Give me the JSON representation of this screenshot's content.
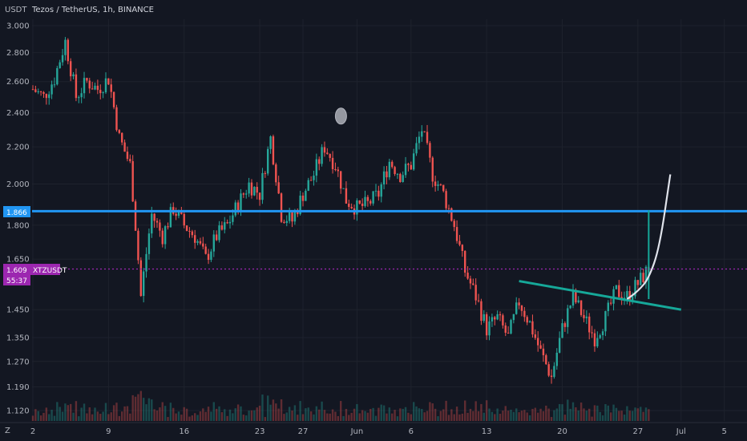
{
  "header": {
    "currency": "USDT",
    "title": "Tezos / TetherUS, 1h, BINANCE"
  },
  "price_tags": {
    "level": "1.866",
    "current_price": "1.609",
    "symbol": "XTZUSDT",
    "countdown": "55:37"
  },
  "footer": {
    "tz_label": "Z"
  },
  "colors": {
    "background": "#131722",
    "up_candle": "#26a69a",
    "down_candle": "#ef5350",
    "level_line": "#2196f3",
    "price_line": "#9c27b0",
    "trend_line": "#16a899",
    "projection": "#e0e3eb"
  },
  "chart_data": {
    "type": "candlestick",
    "title": "Tezos / TetherUS, 1h, BINANCE",
    "y_unit": "USDT",
    "y_scale": "log",
    "ylim": [
      1.1,
      3.0
    ],
    "y_ticks": [
      "3.000",
      "2.800",
      "2.600",
      "2.400",
      "2.200",
      "2.000",
      "1.800",
      "1.650",
      "1.450",
      "1.350",
      "1.270",
      "1.190",
      "1.120"
    ],
    "x_ticks": [
      "2",
      "9",
      "16",
      "23",
      "27",
      "Jun",
      "6",
      "13",
      "20",
      "27",
      "Jul",
      "5"
    ],
    "price_path": [
      {
        "x": "May 2",
        "y": 2.55
      },
      {
        "x": "May 3",
        "y": 2.5
      },
      {
        "x": "May 4",
        "y": 2.62
      },
      {
        "x": "May 5",
        "y": 2.88
      },
      {
        "x": "May 6",
        "y": 2.5
      },
      {
        "x": "May 7",
        "y": 2.6
      },
      {
        "x": "May 8",
        "y": 2.55
      },
      {
        "x": "May 9",
        "y": 2.62
      },
      {
        "x": "May 10",
        "y": 2.25
      },
      {
        "x": "May 11",
        "y": 2.1
      },
      {
        "x": "May 12",
        "y": 1.5
      },
      {
        "x": "May 13",
        "y": 1.85
      },
      {
        "x": "May 14",
        "y": 1.75
      },
      {
        "x": "May 15",
        "y": 1.88
      },
      {
        "x": "May 16",
        "y": 1.8
      },
      {
        "x": "May 17",
        "y": 1.75
      },
      {
        "x": "May 18",
        "y": 1.65
      },
      {
        "x": "May 19",
        "y": 1.75
      },
      {
        "x": "May 20",
        "y": 1.8
      },
      {
        "x": "May 21",
        "y": 1.9
      },
      {
        "x": "May 22",
        "y": 2.0
      },
      {
        "x": "May 23",
        "y": 1.95
      },
      {
        "x": "May 24",
        "y": 2.25
      },
      {
        "x": "May 25",
        "y": 1.85
      },
      {
        "x": "May 26",
        "y": 1.82
      },
      {
        "x": "May 27",
        "y": 1.95
      },
      {
        "x": "May 28",
        "y": 2.05
      },
      {
        "x": "May 29",
        "y": 2.2
      },
      {
        "x": "May 30",
        "y": 2.1
      },
      {
        "x": "May 31",
        "y": 1.92
      },
      {
        "x": "Jun 1",
        "y": 1.88
      },
      {
        "x": "Jun 2",
        "y": 1.9
      },
      {
        "x": "Jun 3",
        "y": 1.95
      },
      {
        "x": "Jun 4",
        "y": 2.12
      },
      {
        "x": "Jun 5",
        "y": 2.05
      },
      {
        "x": "Jun 6",
        "y": 2.1
      },
      {
        "x": "Jun 7",
        "y": 2.3
      },
      {
        "x": "Jun 8",
        "y": 2.05
      },
      {
        "x": "Jun 9",
        "y": 1.95
      },
      {
        "x": "Jun 10",
        "y": 1.8
      },
      {
        "x": "Jun 11",
        "y": 1.6
      },
      {
        "x": "Jun 12",
        "y": 1.5
      },
      {
        "x": "Jun 13",
        "y": 1.38
      },
      {
        "x": "Jun 14",
        "y": 1.42
      },
      {
        "x": "Jun 15",
        "y": 1.35
      },
      {
        "x": "Jun 16",
        "y": 1.48
      },
      {
        "x": "Jun 17",
        "y": 1.4
      },
      {
        "x": "Jun 18",
        "y": 1.3
      },
      {
        "x": "Jun 19",
        "y": 1.22
      },
      {
        "x": "Jun 20",
        "y": 1.38
      },
      {
        "x": "Jun 21",
        "y": 1.5
      },
      {
        "x": "Jun 22",
        "y": 1.42
      },
      {
        "x": "Jun 23",
        "y": 1.35
      },
      {
        "x": "Jun 24",
        "y": 1.42
      },
      {
        "x": "Jun 25",
        "y": 1.52
      },
      {
        "x": "Jun 26",
        "y": 1.5
      },
      {
        "x": "Jun 27",
        "y": 1.55
      },
      {
        "x": "Jun 28",
        "y": 1.61
      }
    ],
    "horizontal_level": 1.866,
    "current_price": 1.609,
    "trend_line": [
      {
        "x": "Jun 16",
        "y": 1.56
      },
      {
        "x": "Jul 1",
        "y": 1.45
      }
    ],
    "projection_path": [
      {
        "x": "Jun 26",
        "y": 1.49
      },
      {
        "x": "Jun 27",
        "y": 1.52
      },
      {
        "x": "Jun 28",
        "y": 1.57
      },
      {
        "x": "Jun 29",
        "y": 1.7
      },
      {
        "x": "Jun 30",
        "y": 2.05
      }
    ],
    "measure_bar": {
      "x": "Jun 28",
      "y_from": 1.49,
      "y_to": 1.87
    },
    "marker": {
      "x": "Jun 1",
      "y": 2.38
    }
  }
}
